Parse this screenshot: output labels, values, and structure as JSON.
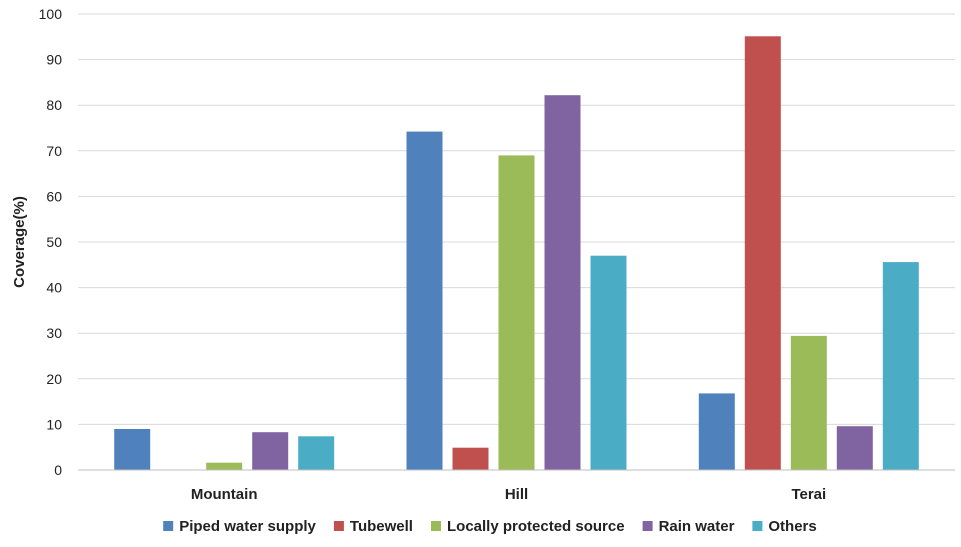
{
  "chart_data": {
    "type": "bar",
    "categories": [
      "Mountain",
      "Hill",
      "Terai"
    ],
    "series": [
      {
        "name": "Piped water supply",
        "color": "#4F81BD",
        "values": [
          9,
          74.2,
          16.8
        ]
      },
      {
        "name": "Tubewell",
        "color": "#C0504D",
        "values": [
          0,
          4.9,
          95.1
        ]
      },
      {
        "name": "Locally protected source",
        "color": "#9BBB59",
        "values": [
          1.6,
          69,
          29.4
        ]
      },
      {
        "name": "Rain water",
        "color": "#8064A2",
        "values": [
          8.3,
          82.2,
          9.6
        ]
      },
      {
        "name": "Others",
        "color": "#4BACC6",
        "values": [
          7.4,
          47,
          45.6
        ]
      }
    ],
    "ylabel": "Coverage(%)",
    "xlabel": "",
    "ylim": [
      0,
      100
    ],
    "yticks": [
      "0",
      "10",
      "20",
      "30",
      "40",
      "50",
      "60",
      "70",
      "80",
      "90",
      "100"
    ],
    "grid": true,
    "legend_position": "bottom"
  }
}
